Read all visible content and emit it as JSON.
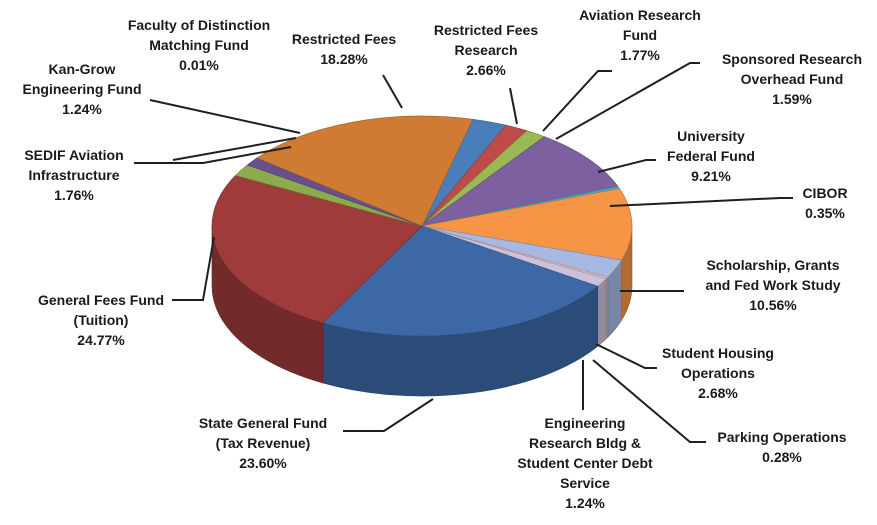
{
  "chart_data": {
    "type": "pie",
    "title": "",
    "slices": [
      {
        "label": "Restricted Fees Research",
        "value": 2.66,
        "color": "#4a7ebb"
      },
      {
        "label": "Aviation Research Fund",
        "value": 1.77,
        "color": "#be4b48"
      },
      {
        "label": "Sponsored Research Overhead Fund",
        "value": 1.59,
        "color": "#98b954"
      },
      {
        "label": "University Federal Fund",
        "value": 9.21,
        "color": "#7d60a0"
      },
      {
        "label": "CIBOR",
        "value": 0.35,
        "color": "#46aac4"
      },
      {
        "label": "Scholarship, Grants and Fed Work Study",
        "value": 10.56,
        "color": "#f69546"
      },
      {
        "label": "Student Housing Operations",
        "value": 2.68,
        "color": "#a7b9e3"
      },
      {
        "label": "Parking Operations",
        "value": 0.28,
        "color": "#e6b9b8"
      },
      {
        "label": "Engineering Research Bldg & Student Center Debt Service",
        "value": 1.24,
        "color": "#ccc1da"
      },
      {
        "label": "State General Fund (Tax Revenue)",
        "value": 23.6,
        "color": "#3c69a6"
      },
      {
        "label": "General Fees Fund (Tuition)",
        "value": 24.77,
        "color": "#a03b3b"
      },
      {
        "label": "SEDIF Aviation Infrastructure",
        "value": 1.76,
        "color": "#8aac4c"
      },
      {
        "label": "Kan-Grow Engineering Fund",
        "value": 1.24,
        "color": "#6a4f8e"
      },
      {
        "label": "Faculty of Distinction Matching Fund",
        "value": 0.01,
        "color": "#3d97b0"
      },
      {
        "label": "Restricted Fees",
        "value": 18.28,
        "color": "#cf7b34"
      }
    ]
  },
  "labels": [
    {
      "lines": [
        "Faculty of Distinction",
        "Matching Fund"
      ],
      "pct": "0.01%"
    },
    {
      "lines": [
        "Restricted Fees"
      ],
      "pct": "18.28%"
    },
    {
      "lines": [
        "Restricted Fees",
        "Research"
      ],
      "pct": "2.66%"
    },
    {
      "lines": [
        "Aviation Research",
        "Fund"
      ],
      "pct": "1.77%"
    },
    {
      "lines": [
        "Sponsored Research",
        "Overhead Fund"
      ],
      "pct": "1.59%"
    },
    {
      "lines": [
        "Kan-Grow",
        "Engineering Fund"
      ],
      "pct": "1.24%"
    },
    {
      "lines": [
        "University",
        "Federal Fund"
      ],
      "pct": "9.21%"
    },
    {
      "lines": [
        "SEDIF Aviation",
        "Infrastructure"
      ],
      "pct": "1.76%"
    },
    {
      "lines": [
        "CIBOR"
      ],
      "pct": "0.35%"
    },
    {
      "lines": [
        "Scholarship, Grants",
        "and Fed Work Study"
      ],
      "pct": "10.56%"
    },
    {
      "lines": [
        "General Fees Fund",
        "(Tuition)"
      ],
      "pct": "24.77%"
    },
    {
      "lines": [
        "Student Housing",
        "Operations"
      ],
      "pct": "2.68%"
    },
    {
      "lines": [
        "State General Fund",
        "(Tax Revenue)"
      ],
      "pct": "23.60%"
    },
    {
      "lines": [
        "Engineering",
        "Research Bldg &",
        "Student Center Debt",
        "Service"
      ],
      "pct": "1.24%"
    },
    {
      "lines": [
        "Parking Operations"
      ],
      "pct": "0.28%"
    }
  ]
}
